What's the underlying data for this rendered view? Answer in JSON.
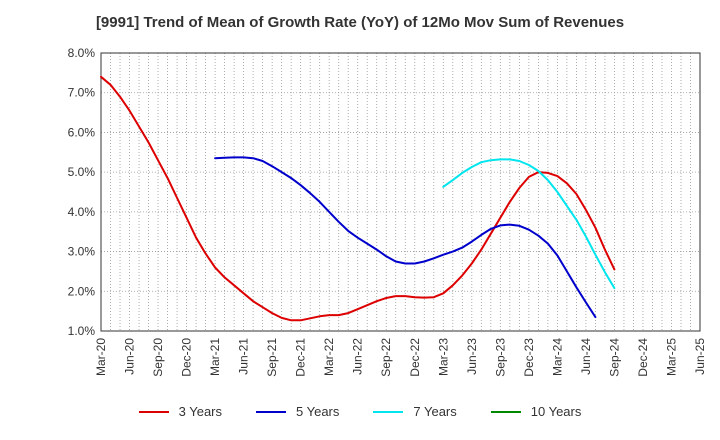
{
  "chart_data": {
    "type": "line",
    "title": "[9991]  Trend of Mean of Growth Rate (YoY) of 12Mo Mov Sum of Revenues",
    "xlabel": "",
    "ylabel": "",
    "ylim": [
      1.0,
      8.0
    ],
    "yticks": [
      "1.0%",
      "2.0%",
      "3.0%",
      "4.0%",
      "5.0%",
      "6.0%",
      "7.0%",
      "8.0%"
    ],
    "yticks_values": [
      1,
      2,
      3,
      4,
      5,
      6,
      7,
      8
    ],
    "xticks": [
      "Mar-20",
      "Jun-20",
      "Sep-20",
      "Dec-20",
      "Mar-21",
      "Jun-21",
      "Sep-21",
      "Dec-21",
      "Mar-22",
      "Jun-22",
      "Sep-22",
      "Dec-22",
      "Mar-23",
      "Jun-23",
      "Sep-23",
      "Dec-23",
      "Mar-24",
      "Jun-24",
      "Sep-24",
      "Dec-24",
      "Mar-25",
      "Jun-25"
    ],
    "grid": true,
    "legend_position": "bottom",
    "series": [
      {
        "name": "3 Years",
        "color": "#dd0000",
        "start_index": 0,
        "values": [
          7.4,
          7.2,
          6.9,
          6.55,
          6.15,
          5.75,
          5.3,
          4.85,
          4.35,
          3.85,
          3.35,
          2.95,
          2.6,
          2.35,
          2.15,
          1.95,
          1.75,
          1.6,
          1.45,
          1.33,
          1.27,
          1.27,
          1.32,
          1.37,
          1.4,
          1.4,
          1.45,
          1.55,
          1.65,
          1.75,
          1.83,
          1.88,
          1.88,
          1.85,
          1.84,
          1.85,
          1.95,
          2.15,
          2.4,
          2.7,
          3.05,
          3.45,
          3.85,
          4.25,
          4.6,
          4.88,
          5.0,
          4.98,
          4.9,
          4.72,
          4.45,
          4.05,
          3.6,
          3.05,
          2.55
        ]
      },
      {
        "name": "5 Years",
        "color": "#0000cc",
        "start_index": 12,
        "values": [
          5.35,
          5.36,
          5.37,
          5.37,
          5.35,
          5.28,
          5.15,
          5.0,
          4.85,
          4.67,
          4.47,
          4.25,
          4.0,
          3.75,
          3.52,
          3.35,
          3.2,
          3.05,
          2.88,
          2.75,
          2.7,
          2.7,
          2.75,
          2.83,
          2.92,
          3.0,
          3.1,
          3.25,
          3.42,
          3.57,
          3.66,
          3.68,
          3.65,
          3.55,
          3.4,
          3.2,
          2.9,
          2.5,
          2.1,
          1.72,
          1.35
        ]
      },
      {
        "name": "7 Years",
        "color": "#00e5ee",
        "start_index": 36,
        "values": [
          4.63,
          4.8,
          4.98,
          5.13,
          5.25,
          5.3,
          5.32,
          5.32,
          5.28,
          5.18,
          5.03,
          4.8,
          4.5,
          4.15,
          3.8,
          3.38,
          2.92,
          2.48,
          2.08
        ]
      },
      {
        "name": "10 Years",
        "color": "#008800",
        "start_index": 0,
        "values": []
      }
    ]
  }
}
